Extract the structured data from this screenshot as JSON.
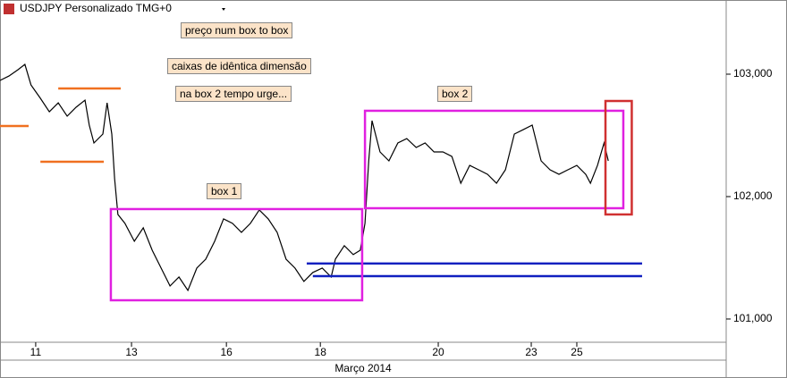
{
  "chart_data": {
    "type": "line",
    "title": "USDJPY Personalizado TMG+0",
    "x_label": "Março 2014",
    "x": [
      -0.76,
      -0.57,
      -0.38,
      -0.23,
      -0.1,
      0.1,
      0.29,
      0.48,
      0.67,
      0.86,
      1.05,
      1.14,
      1.24,
      1.43,
      1.52,
      1.62,
      1.68,
      1.75,
      1.9,
      2.1,
      2.29,
      2.48,
      2.67,
      2.86,
      3.05,
      3.24,
      3.43,
      3.62,
      3.81,
      4.0,
      4.19,
      4.38,
      4.57,
      4.76,
      4.95,
      5.14,
      5.33,
      5.52,
      5.71,
      5.9,
      6.1,
      6.29,
      6.38,
      6.57,
      6.76,
      6.91,
      7.01,
      7.09,
      7.16,
      7.33,
      7.52,
      7.71,
      7.9,
      8.1,
      8.29,
      8.48,
      8.67,
      8.86,
      9.05,
      9.24,
      9.43,
      9.62,
      9.81,
      10.0,
      10.19,
      10.38,
      10.57,
      10.76,
      10.95,
      11.14,
      11.33,
      11.52,
      11.71,
      11.81,
      11.96,
      12.1,
      12.19
    ],
    "series": [
      {
        "name": "USDJPY",
        "color": "#000000",
        "values": [
          102.949,
          102.985,
          103.036,
          103.08,
          102.912,
          102.803,
          102.693,
          102.766,
          102.657,
          102.73,
          102.788,
          102.584,
          102.438,
          102.511,
          102.766,
          102.511,
          102.146,
          101.854,
          101.781,
          101.635,
          101.745,
          101.562,
          101.416,
          101.27,
          101.343,
          101.234,
          101.416,
          101.489,
          101.635,
          101.818,
          101.781,
          101.708,
          101.781,
          101.891,
          101.818,
          101.708,
          101.489,
          101.416,
          101.307,
          101.38,
          101.416,
          101.343,
          101.489,
          101.599,
          101.526,
          101.562,
          101.781,
          102.292,
          102.62,
          102.365,
          102.292,
          102.438,
          102.474,
          102.401,
          102.438,
          102.365,
          102.365,
          102.328,
          102.109,
          102.255,
          102.219,
          102.182,
          102.109,
          102.219,
          102.511,
          102.547,
          102.584,
          102.292,
          102.219,
          102.182,
          102.219,
          102.255,
          102.182,
          102.109,
          102.255,
          102.438,
          102.292
        ]
      }
    ],
    "xlim": [
      -0.76,
      14.7
    ],
    "ylim": [
      100.81,
      103.606
    ],
    "xticks": [
      {
        "value": 0,
        "label": "11"
      },
      {
        "value": 2.04,
        "label": "13"
      },
      {
        "value": 4.06,
        "label": "16"
      },
      {
        "value": 6.06,
        "label": "18"
      },
      {
        "value": 8.57,
        "label": "20"
      },
      {
        "value": 10.55,
        "label": "23"
      },
      {
        "value": 11.52,
        "label": "25"
      }
    ],
    "yticks": [
      {
        "value": 101,
        "label": "101,000"
      },
      {
        "value": 102,
        "label": "102,000"
      },
      {
        "value": 103,
        "label": "103,000"
      }
    ],
    "levels": [
      {
        "color": "#f07020",
        "x": [
          -0.76,
          -0.15
        ],
        "y": 102.577
      },
      {
        "color": "#f07020",
        "x": [
          0.48,
          1.81
        ],
        "y": 102.883
      },
      {
        "color": "#f07020",
        "x": [
          0.1,
          1.45
        ],
        "y": 102.285
      },
      {
        "color": "#1020c0",
        "x": [
          5.77,
          12.91
        ],
        "y": 101.453
      },
      {
        "color": "#1020c0",
        "x": [
          5.9,
          12.91
        ],
        "y": 101.35
      }
    ],
    "boxes": [
      {
        "color": "#e020e0",
        "x": [
          1.6,
          6.95
        ],
        "y": [
          101.153,
          101.898
        ]
      },
      {
        "color": "#e020e0",
        "x": [
          7.01,
          12.51
        ],
        "y": [
          101.905,
          102.701
        ]
      },
      {
        "color": "#d03030",
        "x": [
          12.13,
          12.69
        ],
        "y": [
          101.854,
          102.781
        ]
      }
    ],
    "annotations": [
      "preço num box to box",
      "caixas de idêntica dimensão",
      "na box 2 tempo urge...",
      "box 1",
      "box 2"
    ]
  }
}
